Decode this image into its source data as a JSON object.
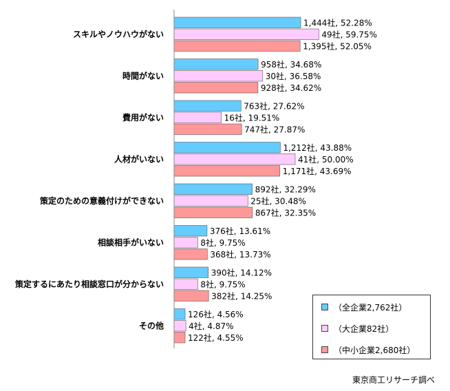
{
  "chart_data": {
    "type": "bar",
    "orientation": "horizontal",
    "categories": [
      "スキルやノウハウがない",
      "時間がない",
      "費用がない",
      "人材がいない",
      "策定のための意義付けができない",
      "相談相手がいない",
      "策定するにあたり相談窓口が分からない",
      "その他"
    ],
    "series": [
      {
        "name": "（全企業2,762社）",
        "color": "#66ccff",
        "values": [
          52.28,
          34.68,
          27.62,
          43.88,
          32.29,
          13.61,
          14.12,
          4.56
        ],
        "labels": [
          "1,444社, 52.28%",
          "958社, 34.68%",
          "763社, 27.62%",
          "1,212社, 43.88%",
          "892社, 32.29%",
          "376社, 13.61%",
          "390社, 14.12%",
          "126社, 4.56%"
        ]
      },
      {
        "name": "（大企業82社）",
        "color": "#ffccff",
        "values": [
          59.75,
          36.58,
          19.51,
          50.0,
          30.48,
          9.75,
          9.75,
          4.87
        ],
        "labels": [
          "49社, 59.75%",
          "30社, 36.58%",
          "16社, 19.51%",
          "41社, 50.00%",
          "25社, 30.48%",
          "8社, 9.75%",
          "8社, 9.75%",
          "4社, 4.87%"
        ]
      },
      {
        "name": "（中小企業2,680社）",
        "color": "#ff9999",
        "values": [
          52.05,
          34.62,
          27.87,
          43.69,
          32.35,
          13.73,
          14.25,
          4.55
        ],
        "labels": [
          "1,395社, 52.05%",
          "928社, 34.62%",
          "747社, 27.87%",
          "1,171社, 43.69%",
          "867社, 32.35%",
          "368社, 13.73%",
          "382社, 14.25%",
          "122社, 4.55%"
        ]
      }
    ],
    "xlim": [
      0,
      100
    ],
    "grid": false,
    "legend_position": "bottom-right",
    "source": "東京商工リサーチ調べ"
  }
}
